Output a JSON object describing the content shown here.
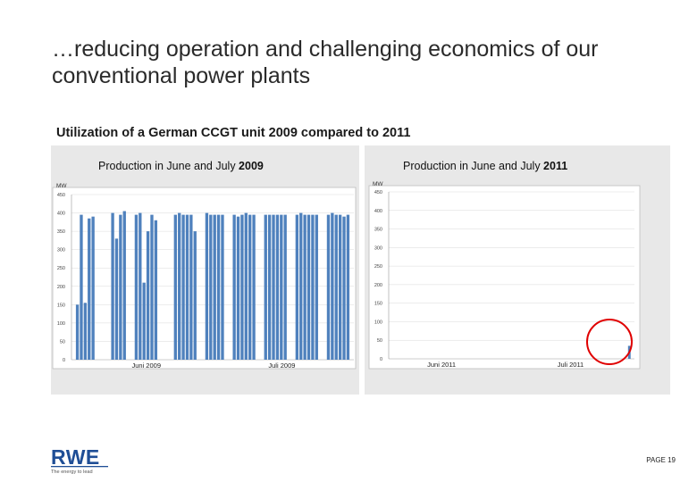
{
  "header": {
    "title": "…reducing operation and challenging economics of our conventional power plants",
    "subtitle": "Utilization of a German CCGT unit 2009 compared to 2011"
  },
  "footer": {
    "brand": "RWE",
    "tagline": "The energy to lead",
    "page": "PAGE 19"
  },
  "colors": {
    "bar": "#4f81bd",
    "highlight": "#e00000",
    "grid": "#cfcfcf",
    "panel": "#e8e8e8"
  },
  "chart_data": [
    {
      "type": "bar",
      "title_prefix": "Production in June and July ",
      "title_year": "2009",
      "ylabel": "MW",
      "ylim": [
        0,
        450
      ],
      "yticks": [
        "0",
        "50",
        "100",
        "150",
        "200",
        "250",
        "300",
        "350",
        "400",
        "450"
      ],
      "xticks": [
        "Juni 2009",
        "Juli 2009"
      ],
      "series": [
        {
          "values": [
            0,
            150,
            395,
            155,
            385,
            390,
            0,
            0,
            0,
            0,
            400,
            330,
            395,
            405,
            0,
            0,
            395,
            400,
            210,
            350,
            395,
            380,
            0,
            0,
            0,
            0,
            395,
            400,
            395,
            395,
            395,
            350,
            0,
            0,
            400,
            395,
            395,
            395,
            395,
            0,
            0,
            395,
            390,
            395,
            400,
            395,
            395,
            0,
            0,
            395,
            395,
            395,
            395,
            395,
            395,
            0,
            0,
            395,
            400,
            395,
            395,
            395,
            395,
            0,
            0,
            395,
            400,
            395,
            395,
            390,
            395,
            0
          ]
        }
      ]
    },
    {
      "type": "bar",
      "title_prefix": "Production in June and July ",
      "title_year": "2011",
      "ylabel": "MW",
      "ylim": [
        0,
        450
      ],
      "yticks": [
        "0",
        "50",
        "100",
        "150",
        "200",
        "250",
        "300",
        "350",
        "400",
        "450"
      ],
      "xticks": [
        "Juni 2011",
        "Juli 2011"
      ],
      "series": [
        {
          "values": [
            0,
            0,
            0,
            0,
            0,
            0,
            0,
            0,
            0,
            0,
            0,
            0,
            0,
            0,
            0,
            0,
            0,
            0,
            0,
            0,
            0,
            0,
            0,
            0,
            0,
            0,
            0,
            0,
            0,
            0,
            0,
            0,
            0,
            0,
            0,
            0,
            0,
            0,
            0,
            0,
            0,
            0,
            0,
            0,
            0,
            0,
            0,
            0,
            0,
            0,
            0,
            0,
            0,
            0,
            0,
            0,
            0,
            0,
            0,
            0,
            0,
            0,
            0,
            0,
            0,
            0,
            0,
            0,
            0,
            0,
            35,
            0
          ]
        }
      ]
    }
  ]
}
